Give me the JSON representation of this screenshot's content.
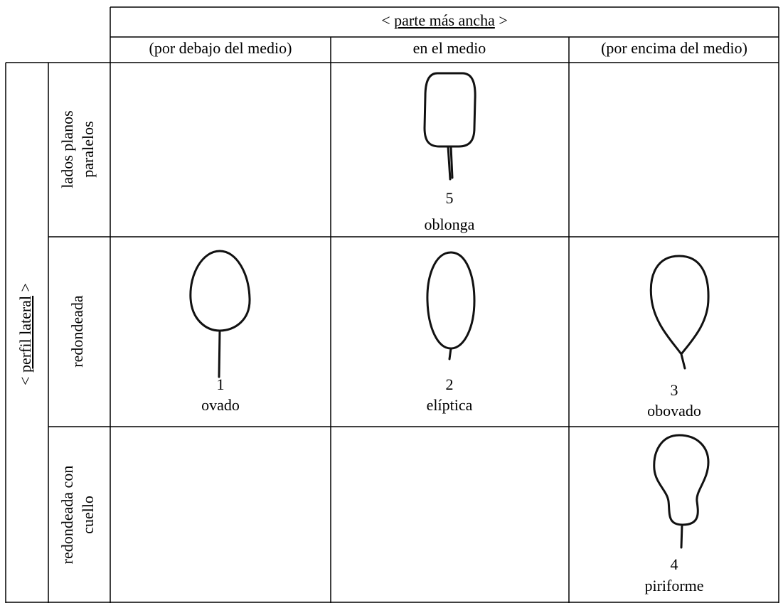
{
  "header": {
    "open": "<",
    "title": "parte más ancha",
    "close": ">"
  },
  "columns": [
    "(por debajo del medio)",
    "en el medio",
    "(por encima del medio)"
  ],
  "row_axis": {
    "open": "<",
    "title": "perfil lateral",
    "close": ">"
  },
  "rows": [
    {
      "label": [
        "lados planos",
        "paralelos"
      ],
      "cells": [
        null,
        {
          "number": 5,
          "name": "oblonga"
        },
        null
      ]
    },
    {
      "label": [
        "redondeada"
      ],
      "cells": [
        {
          "number": 1,
          "name": "ovado"
        },
        {
          "number": 2,
          "name": "elíptica"
        },
        {
          "number": 3,
          "name": "obovado"
        }
      ]
    },
    {
      "label": [
        "redondeada con",
        "cuello"
      ],
      "cells": [
        null,
        null,
        {
          "number": 4,
          "name": "piriforme"
        }
      ]
    }
  ]
}
